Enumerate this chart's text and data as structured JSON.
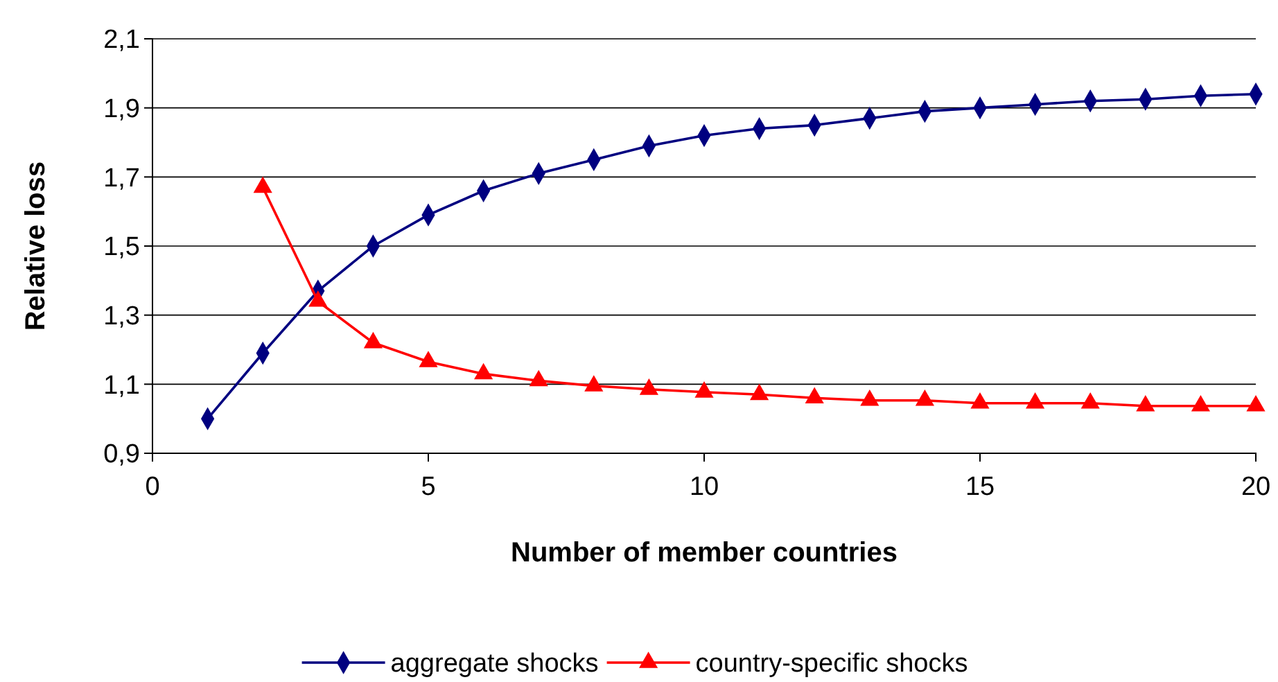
{
  "chart_data": {
    "type": "line",
    "xlabel": "Number of member countries",
    "ylabel": "Relative loss",
    "xlim": [
      0,
      20
    ],
    "xticks": [
      0,
      5,
      10,
      15,
      20
    ],
    "ylim": [
      0.9,
      2.1
    ],
    "yticks": [
      {
        "value": 0.9,
        "label": "0,9"
      },
      {
        "value": 1.1,
        "label": "1,1"
      },
      {
        "value": 1.3,
        "label": "1,3"
      },
      {
        "value": 1.5,
        "label": "1,5"
      },
      {
        "value": 1.7,
        "label": "1,7"
      },
      {
        "value": 1.9,
        "label": "1,9"
      },
      {
        "value": 2.1,
        "label": "2,1"
      }
    ],
    "grid": "y",
    "legend": "bottom",
    "series": [
      {
        "name": "aggregate shocks",
        "color": "#000080",
        "marker": "diamond",
        "x": [
          1,
          2,
          3,
          4,
          5,
          6,
          7,
          8,
          9,
          10,
          11,
          12,
          13,
          14,
          15,
          16,
          17,
          18,
          19,
          20
        ],
        "values": [
          1.0,
          1.19,
          1.37,
          1.5,
          1.59,
          1.66,
          1.71,
          1.75,
          1.79,
          1.82,
          1.84,
          1.85,
          1.87,
          1.89,
          1.9,
          1.91,
          1.92,
          1.925,
          1.935,
          1.94
        ]
      },
      {
        "name": "country-specific shocks",
        "color": "#ff0000",
        "marker": "triangle",
        "x": [
          2,
          3,
          4,
          5,
          6,
          7,
          8,
          9,
          10,
          11,
          12,
          13,
          14,
          15,
          16,
          17,
          18,
          19,
          20
        ],
        "values": [
          1.67,
          1.34,
          1.22,
          1.165,
          1.13,
          1.11,
          1.095,
          1.085,
          1.077,
          1.07,
          1.06,
          1.053,
          1.053,
          1.045,
          1.045,
          1.045,
          1.037,
          1.037,
          1.037
        ]
      }
    ]
  }
}
